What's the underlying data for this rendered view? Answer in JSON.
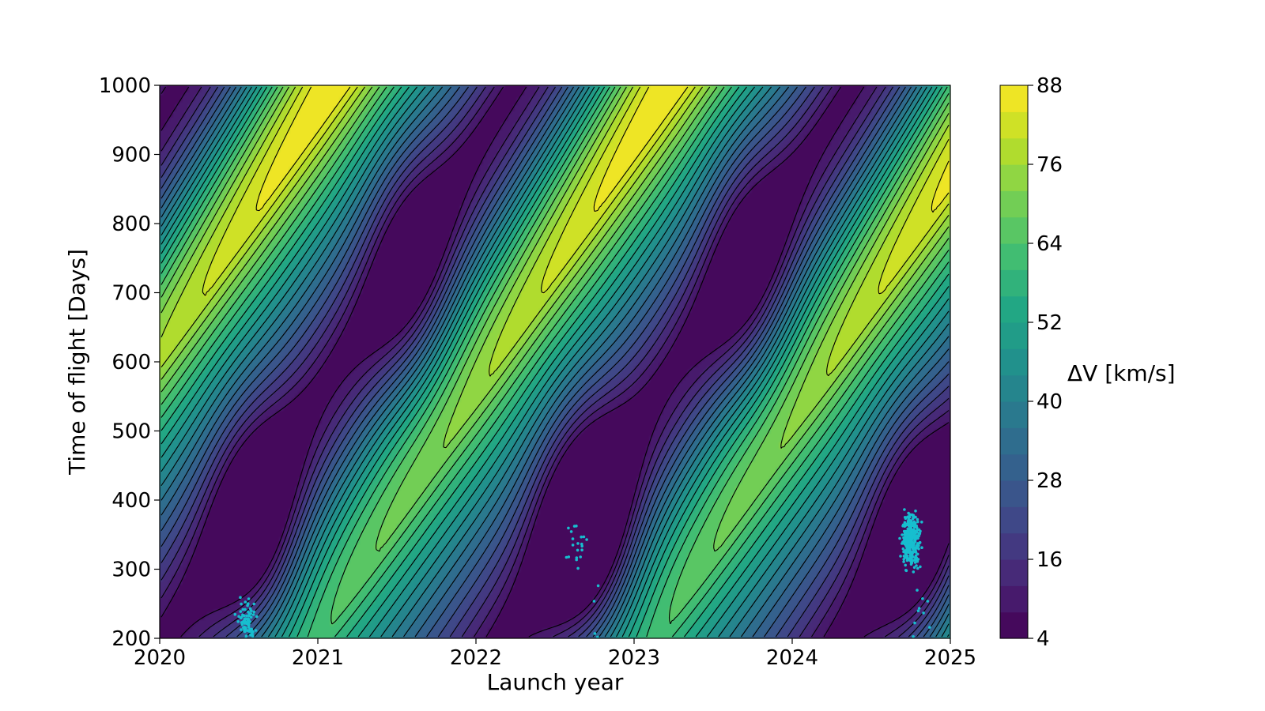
{
  "chart_data": {
    "type": "heatmap",
    "subtype": "filled-contour (porkchop plot) with scatter overlay",
    "title": "",
    "xlabel": "Launch year",
    "ylabel": "Time of flight [Days]",
    "xlim": [
      2020,
      2025
    ],
    "ylim": [
      200,
      1000
    ],
    "x_ticks": [
      "2020",
      "2021",
      "2022",
      "2023",
      "2024",
      "2025"
    ],
    "y_ticks": [
      "200",
      "300",
      "400",
      "500",
      "600",
      "700",
      "800",
      "900",
      "1000"
    ],
    "colormap": "viridis",
    "contour_line_color": "#000000",
    "colorbar": {
      "label": "ΔV [km/s]",
      "range": [
        4,
        88
      ],
      "step": 4,
      "ticks": [
        "4",
        "16",
        "28",
        "40",
        "52",
        "64",
        "76",
        "88"
      ]
    },
    "scatter": {
      "color": "#17becf",
      "clusters": [
        {
          "x_center": 2020.55,
          "y_center": 218,
          "count": 90
        },
        {
          "x_center": 2022.65,
          "y_center": 340,
          "count": 20
        },
        {
          "x_center": 2022.75,
          "y_center": 222,
          "count": 5
        },
        {
          "x_center": 2024.75,
          "y_center": 340,
          "count": 320
        },
        {
          "x_center": 2024.8,
          "y_center": 238,
          "count": 10
        }
      ]
    },
    "minima_regions": [
      {
        "x": 2020.65,
        "y": 360,
        "dv": 6
      },
      {
        "x": 2022.7,
        "y": 350,
        "dv": 6
      },
      {
        "x": 2024.75,
        "y": 340,
        "dv": 6
      },
      {
        "x": 2021.6,
        "y": 780,
        "dv": 12
      },
      {
        "x": 2023.7,
        "y": 700,
        "dv": 12
      }
    ]
  }
}
